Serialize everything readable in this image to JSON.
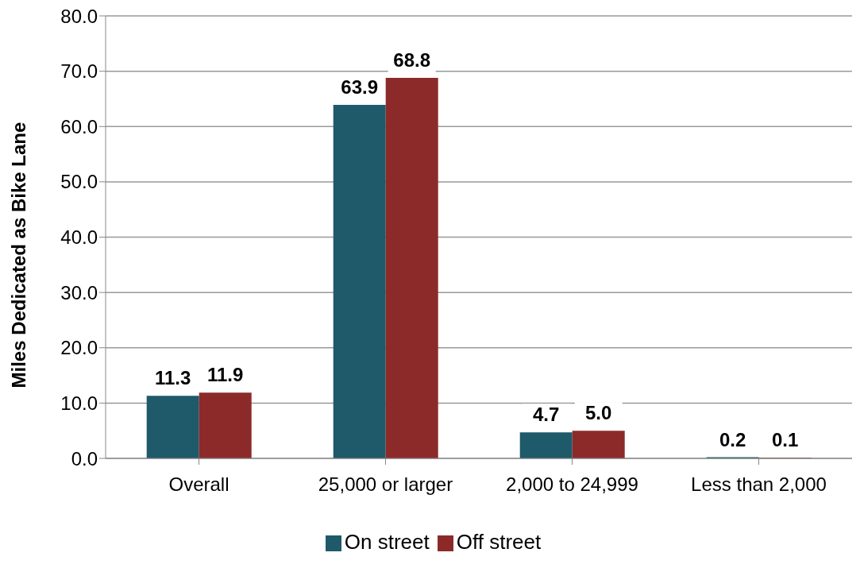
{
  "chart_data": {
    "type": "bar",
    "ylabel": "Miles Dedicated as Bike Lane",
    "categories": [
      "Overall",
      "25,000 or larger",
      "2,000 to 24,999",
      "Less than 2,000"
    ],
    "series": [
      {
        "name": "On street",
        "color": "#1e5a6a",
        "values": [
          11.3,
          63.9,
          4.7,
          0.2
        ],
        "value_labels": [
          "11.3",
          "63.9",
          "4.7",
          "0.2"
        ]
      },
      {
        "name": "Off street",
        "color": "#8c2a2a",
        "values": [
          11.9,
          68.8,
          5.0,
          0.1
        ],
        "value_labels": [
          "11.9",
          "68.8",
          "5.0",
          "0.1"
        ]
      }
    ],
    "ylim": [
      0,
      80
    ],
    "yticks": [
      {
        "value": 0,
        "label": "0.0"
      },
      {
        "value": 10,
        "label": "10.0"
      },
      {
        "value": 20,
        "label": "20.0"
      },
      {
        "value": 30,
        "label": "30.0"
      },
      {
        "value": 40,
        "label": "40.0"
      },
      {
        "value": 50,
        "label": "50.0"
      },
      {
        "value": 60,
        "label": "60.0"
      },
      {
        "value": 70,
        "label": "70.0"
      },
      {
        "value": 80,
        "label": "80.0"
      }
    ],
    "grid": "y",
    "legend": "bottom"
  }
}
